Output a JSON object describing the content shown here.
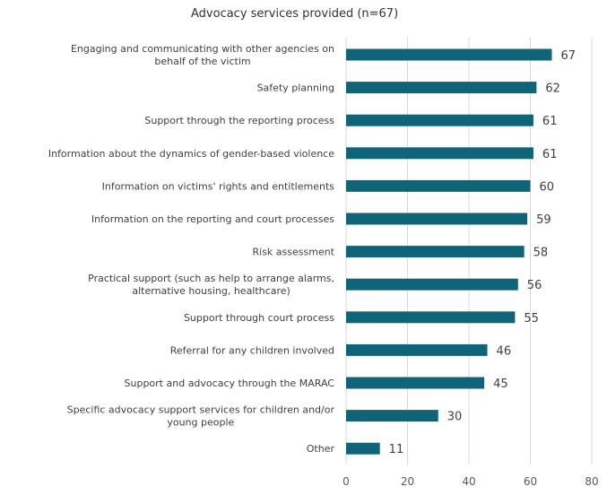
{
  "chart_data": {
    "type": "bar",
    "orientation": "horizontal",
    "title": "Advocacy services provided (n=67)",
    "xlabel": "",
    "ylabel": "",
    "xlim": [
      0,
      80
    ],
    "x_ticks": [
      0,
      20,
      40,
      60,
      80
    ],
    "grid": "vertical",
    "legend": "none",
    "bar_color": "#0f6577",
    "categories": [
      "Engaging and communicating with other agencies on behalf of the victim",
      "Safety planning",
      "Support through the reporting process",
      "Information about the dynamics of gender-based violence",
      "Information on victims' rights and entitlements",
      "Information on the reporting and court processes",
      "Risk assessment",
      "Practical support (such as help to arrange alarms, alternative housing, healthcare)",
      "Support through court process",
      "Referral for any children involved",
      "Support and advocacy through the MARAC",
      "Specific advocacy support services for children and/or young people",
      "Other"
    ],
    "values": [
      67,
      62,
      61,
      61,
      60,
      59,
      58,
      56,
      55,
      46,
      45,
      30,
      11
    ]
  }
}
